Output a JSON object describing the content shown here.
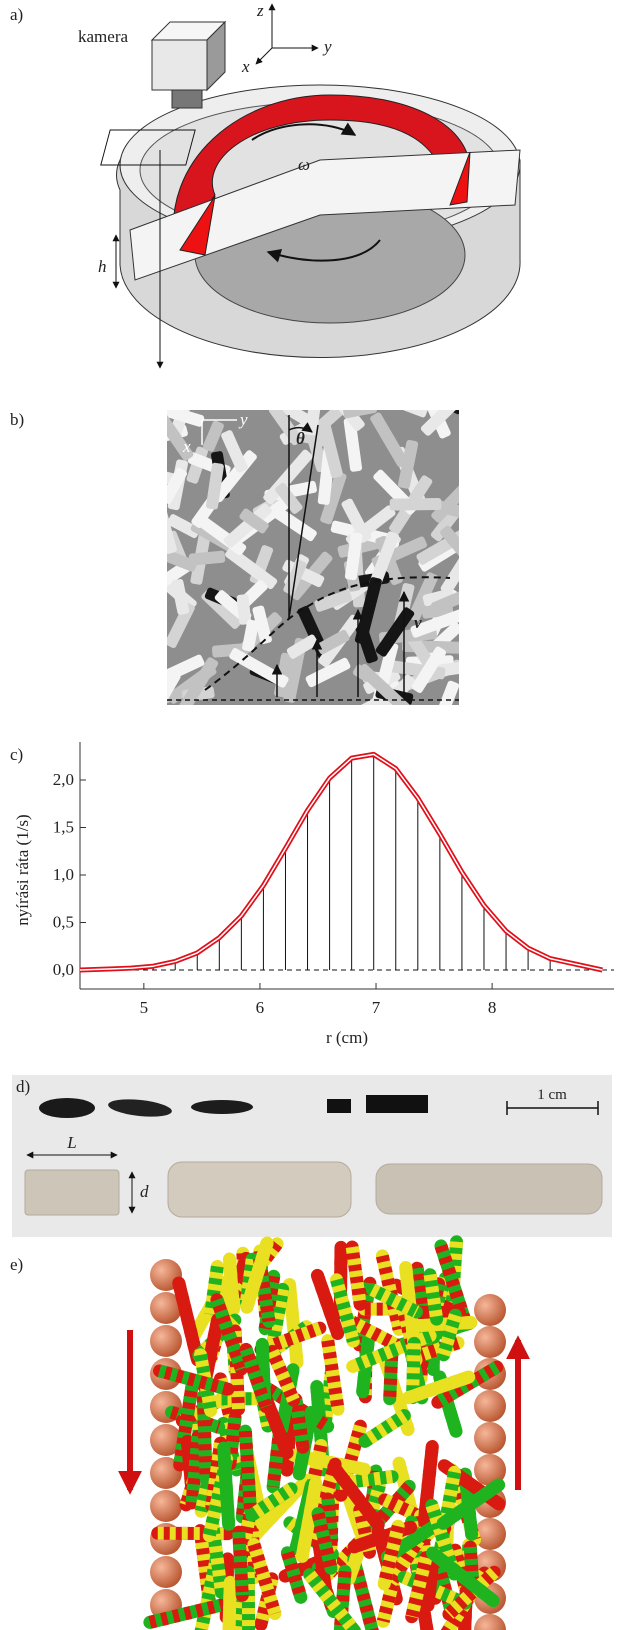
{
  "panel_a": {
    "label": "a)",
    "camera": "kamera",
    "z": "z",
    "y": "y",
    "x": "x",
    "omega": "ω",
    "h": "h"
  },
  "panel_b": {
    "label": "b)",
    "x": "x",
    "y": "y",
    "theta": "θ",
    "v": "v"
  },
  "chart_data": {
    "type": "line",
    "label": "c)",
    "xlabel": "r (cm)",
    "ylabel": "nyírási ráta (1/s)",
    "x": [
      4.45,
      4.7,
      4.89,
      5.08,
      5.27,
      5.46,
      5.65,
      5.84,
      6.03,
      6.22,
      6.41,
      6.6,
      6.79,
      6.98,
      7.17,
      7.36,
      7.55,
      7.74,
      7.93,
      8.12,
      8.31,
      8.5,
      8.95
    ],
    "series": [
      {
        "color": "#e0101a",
        "values": [
          0,
          0.01,
          0.02,
          0.04,
          0.09,
          0.18,
          0.34,
          0.57,
          0.89,
          1.28,
          1.68,
          2.02,
          2.23,
          2.27,
          2.12,
          1.81,
          1.43,
          1.03,
          0.68,
          0.41,
          0.23,
          0.12,
          0
        ]
      }
    ],
    "xlim": [
      4.45,
      9.05
    ],
    "ylim": [
      -0.2,
      2.4
    ],
    "xticks": [
      5,
      6,
      7,
      8
    ],
    "yticks": [
      {
        "value": 0,
        "label": "0,0"
      },
      {
        "value": 0.5,
        "label": "0,5"
      },
      {
        "value": 1,
        "label": "1,0"
      },
      {
        "value": 1.5,
        "label": "1,5"
      },
      {
        "value": 2,
        "label": "2,0"
      }
    ]
  },
  "panel_d": {
    "label": "d)",
    "scale": "1 cm",
    "L": "L",
    "d": "d"
  },
  "panel_e": {
    "label": "e)"
  }
}
